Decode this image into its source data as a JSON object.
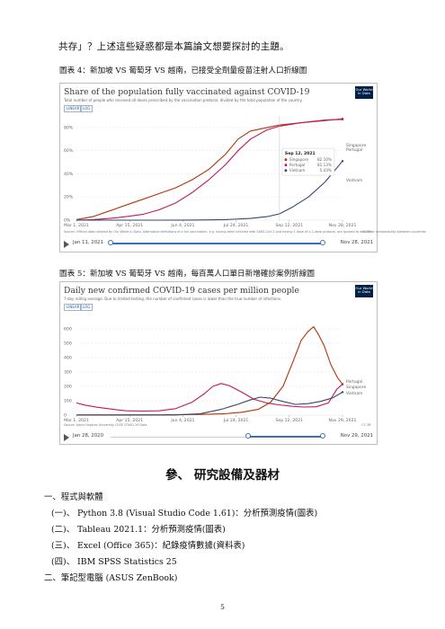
{
  "intro_line": "共存」？上述這些疑惑都是本篇論文想要探討的主題。",
  "figure4": {
    "caption": "圖表 4：新加坡 VS 葡萄牙 VS 越南，已接受全劑量疫苗注射人口折線圖",
    "title": "Share of the population fully vaccinated against COVID-19",
    "subtitle": "Total number of people who received all doses prescribed by the vaccination protocol, divided by the total population of the country.",
    "owid_logo": "Our World in Data",
    "chip_linear": "LINEAR",
    "chip_log": "LOG",
    "source": "Source: Official data collated by Our World in Data. Alternative definitions of a full vaccination, e.g. having been infected with SARS-CoV-2 and having 1 dose of a 2-dose protocol, are ignored to maximize comparability between countries.",
    "license": "CC BY",
    "timeline_start": "Jan 11, 2021",
    "timeline_end": "Nov 28, 2021",
    "tooltip": {
      "date": "Sep 12, 2021",
      "rows": [
        {
          "name": "Singapore",
          "value": "82.10%",
          "color": "#b13507"
        },
        {
          "name": "Portugal",
          "value": "81.13%",
          "color": "#c4165d"
        },
        {
          "name": "Vietnam",
          "value": "5.43%",
          "color": "#38466c"
        }
      ]
    }
  },
  "figure5": {
    "caption": "圖表 5：新加坡 VS 葡萄牙 VS 越南，每百萬人口單日新增確診案例折線圖",
    "title": "Daily new confirmed COVID-19 cases per million people",
    "subtitle": "7-day rolling average. Due to limited testing, the number of confirmed cases is lower than the true number of infections.",
    "owid_logo": "Our World in Data",
    "chip_linear": "LINEAR",
    "chip_log": "LOG",
    "source": "Source: Johns Hopkins University CSSE COVID-19 Data",
    "license": "CC BY",
    "timeline_start": "Jan 28, 2020",
    "timeline_end": "Nov 29, 2021"
  },
  "chart_data": [
    {
      "type": "line",
      "title": "Share of the population fully vaccinated against COVID-19",
      "x_ticks": [
        "Mar 1, 2021",
        "Apr 15, 2021",
        "Jun 4, 2021",
        "Jul 24, 2021",
        "Sep 12, 2021",
        "Nov 28, 2021"
      ],
      "y_ticks": [
        "0%",
        "20%",
        "40%",
        "60%",
        "80%"
      ],
      "ylim": [
        0,
        90
      ],
      "x_range_days": [
        0,
        321
      ],
      "series": [
        {
          "name": "Singapore",
          "color": "#b13507",
          "points": [
            [
              0,
              0.5
            ],
            [
              20,
              3
            ],
            [
              40,
              8
            ],
            [
              60,
              13
            ],
            [
              80,
              18
            ],
            [
              100,
              23
            ],
            [
              120,
              28
            ],
            [
              140,
              35
            ],
            [
              160,
              44
            ],
            [
              180,
              57
            ],
            [
              195,
              70
            ],
            [
              210,
              77
            ],
            [
              230,
              80
            ],
            [
              245,
              82.1
            ],
            [
              270,
              84
            ],
            [
              300,
              86
            ],
            [
              321,
              87.5
            ]
          ]
        },
        {
          "name": "Portugal",
          "color": "#c4165d",
          "points": [
            [
              0,
              0
            ],
            [
              20,
              0.5
            ],
            [
              40,
              1.5
            ],
            [
              60,
              3
            ],
            [
              80,
              5
            ],
            [
              100,
              9
            ],
            [
              120,
              15
            ],
            [
              140,
              24
            ],
            [
              160,
              35
            ],
            [
              180,
              48
            ],
            [
              195,
              60
            ],
            [
              210,
              70
            ],
            [
              230,
              78
            ],
            [
              245,
              81.13
            ],
            [
              270,
              84
            ],
            [
              300,
              86.5
            ],
            [
              321,
              87
            ]
          ]
        },
        {
          "name": "Vietnam",
          "color": "#38466c",
          "points": [
            [
              0,
              0
            ],
            [
              100,
              0
            ],
            [
              140,
              0.1
            ],
            [
              180,
              0.5
            ],
            [
              210,
              1.5
            ],
            [
              230,
              3
            ],
            [
              245,
              5.43
            ],
            [
              260,
              11
            ],
            [
              280,
              20
            ],
            [
              300,
              33
            ],
            [
              321,
              51
            ]
          ]
        }
      ],
      "end_labels": [
        "Singapore",
        "Portugal",
        "Vietnam"
      ],
      "legend": "tooltip"
    },
    {
      "type": "line",
      "title": "Daily new confirmed COVID-19 cases per million people",
      "x_ticks": [
        "Mar 1, 2021",
        "Apr 15, 2021",
        "Jun 4, 2021",
        "Jul 24, 2021",
        "Sep 12, 2021",
        "Nov 29, 2021"
      ],
      "y_ticks": [
        "0",
        "100",
        "200",
        "300",
        "400",
        "500",
        "600"
      ],
      "ylim": [
        0,
        700
      ],
      "x_range_days": [
        0,
        322
      ],
      "series": [
        {
          "name": "Portugal",
          "color": "#c4165d",
          "points": [
            [
              0,
              85
            ],
            [
              10,
              70
            ],
            [
              25,
              55
            ],
            [
              45,
              40
            ],
            [
              60,
              30
            ],
            [
              80,
              28
            ],
            [
              100,
              30
            ],
            [
              120,
              45
            ],
            [
              140,
              90
            ],
            [
              155,
              150
            ],
            [
              165,
              200
            ],
            [
              175,
              220
            ],
            [
              185,
              205
            ],
            [
              200,
              160
            ],
            [
              215,
              110
            ],
            [
              230,
              85
            ],
            [
              245,
              72
            ],
            [
              260,
              62
            ],
            [
              275,
              56
            ],
            [
              290,
              58
            ],
            [
              305,
              85
            ],
            [
              315,
              180
            ],
            [
              322,
              215
            ]
          ]
        },
        {
          "name": "Singapore",
          "color": "#b13507",
          "points": [
            [
              0,
              2
            ],
            [
              100,
              2
            ],
            [
              150,
              5
            ],
            [
              180,
              10
            ],
            [
              200,
              20
            ],
            [
              220,
              40
            ],
            [
              235,
              90
            ],
            [
              250,
              200
            ],
            [
              262,
              370
            ],
            [
              272,
              520
            ],
            [
              280,
              580
            ],
            [
              287,
              615
            ],
            [
              293,
              560
            ],
            [
              300,
              480
            ],
            [
              308,
              350
            ],
            [
              316,
              260
            ],
            [
              322,
              215
            ]
          ]
        },
        {
          "name": "Vietnam",
          "color": "#38466c",
          "points": [
            [
              0,
              0
            ],
            [
              120,
              1
            ],
            [
              150,
              10
            ],
            [
              175,
              40
            ],
            [
              195,
              75
            ],
            [
              210,
              105
            ],
            [
              222,
              125
            ],
            [
              235,
              118
            ],
            [
              250,
              95
            ],
            [
              265,
              75
            ],
            [
              280,
              80
            ],
            [
              295,
              95
            ],
            [
              310,
              120
            ],
            [
              322,
              160
            ]
          ]
        }
      ],
      "end_labels": [
        "Portugal",
        "Singapore",
        "Vietnam"
      ]
    }
  ],
  "section": {
    "heading": "參、 研究設備及器材",
    "items": [
      {
        "text": "一、程式與軟體",
        "indent": 0
      },
      {
        "text": "(一)、 Python 3.8 (Visual Studio Code 1.61)：分析預測疫情(圖表)",
        "indent": 1
      },
      {
        "text": "(二)、 Tableau 2021.1：分析預測疫情(圖表)",
        "indent": 1
      },
      {
        "text": "(三)、 Excel (Office 365)：紀錄疫情數據(資料表)",
        "indent": 1
      },
      {
        "text": "(四)、 IBM SPSS Statistics 25",
        "indent": 1
      },
      {
        "text": "二、筆記型電腦 (ASUS ZenBook)",
        "indent": 0
      }
    ]
  },
  "page_number": "5"
}
